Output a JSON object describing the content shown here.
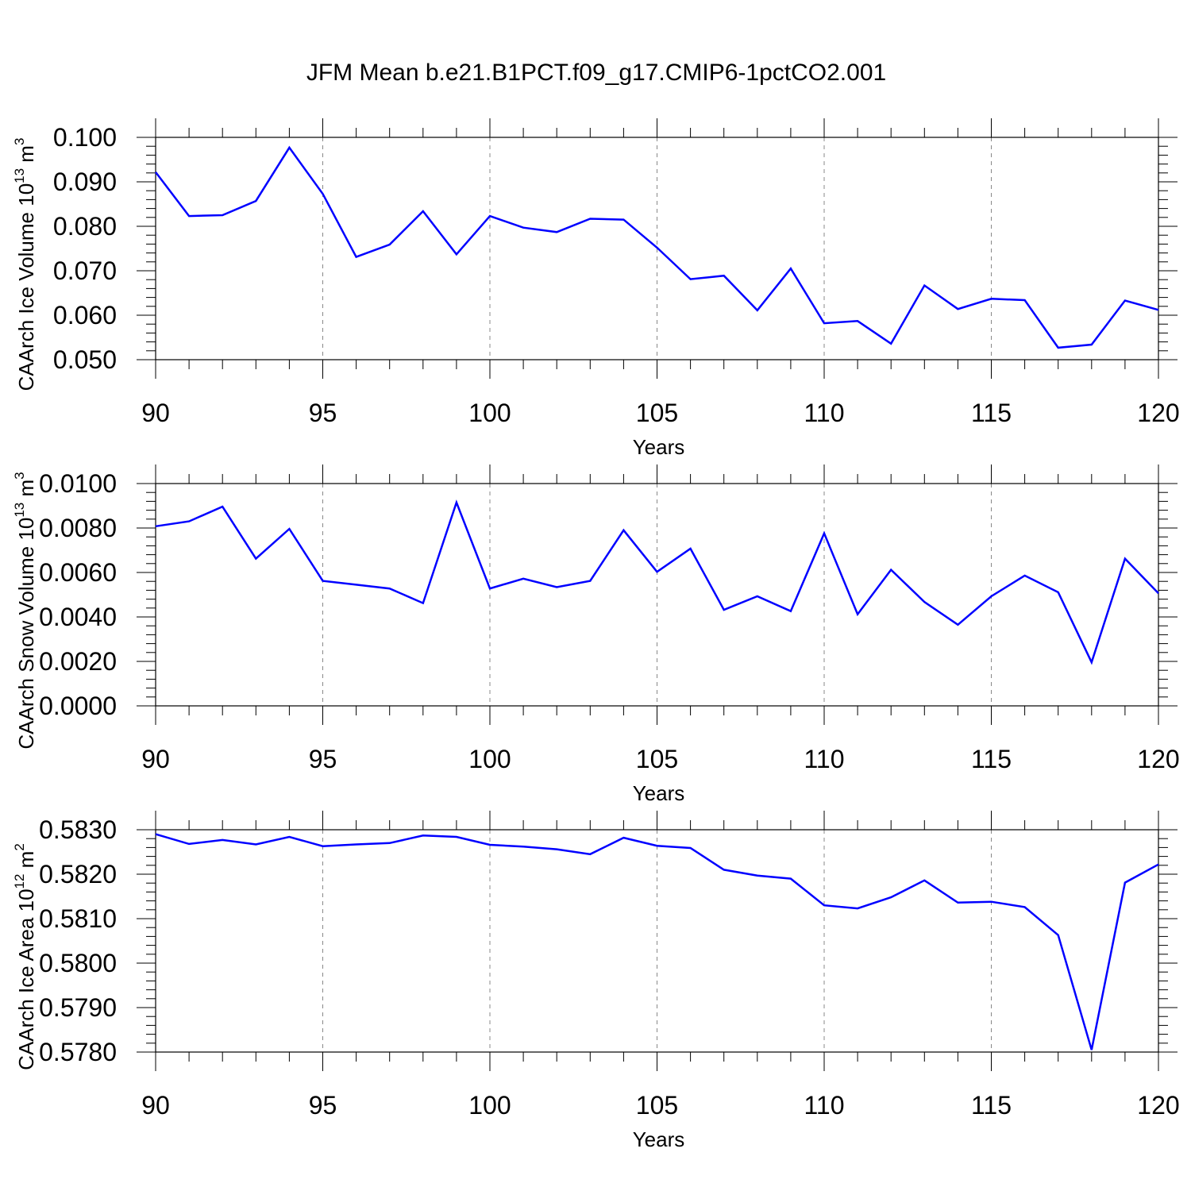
{
  "title": "JFM Mean b.e21.B1PCT.f09_g17.CMIP6-1pctCO2.001",
  "colors": {
    "series": "#0000ff",
    "grid": "#888888",
    "axes": "#000000"
  },
  "chart_data": [
    {
      "type": "line",
      "xlabel": "Years",
      "ylabel": {
        "text": "CAArch Ice Volume 10",
        "sup1": "13",
        "mid": " m",
        "sup2": "3"
      },
      "xlim": [
        90,
        120
      ],
      "ylim": [
        0.05,
        0.1
      ],
      "xticks": [
        "90",
        "95",
        "100",
        "105",
        "110",
        "115",
        "120"
      ],
      "yticks": [
        "0.050",
        "0.060",
        "0.070",
        "0.080",
        "0.090",
        "0.100"
      ],
      "grid": "vertical dashed at major x ticks",
      "x": [
        90,
        91,
        92,
        93,
        94,
        95,
        96,
        97,
        98,
        99,
        100,
        101,
        102,
        103,
        104,
        105,
        106,
        107,
        108,
        109,
        110,
        111,
        112,
        113,
        114,
        115,
        116,
        117,
        118,
        119,
        120
      ],
      "values": [
        0.0922,
        0.0823,
        0.0825,
        0.0857,
        0.0977,
        0.0873,
        0.0731,
        0.0759,
        0.0834,
        0.0737,
        0.0823,
        0.0797,
        0.0787,
        0.0817,
        0.0815,
        0.0752,
        0.0681,
        0.0689,
        0.0611,
        0.0705,
        0.0582,
        0.0587,
        0.0536,
        0.0667,
        0.0614,
        0.0637,
        0.0634,
        0.0527,
        0.0534,
        0.0633,
        0.0612
      ]
    },
    {
      "type": "line",
      "xlabel": "Years",
      "ylabel": {
        "text": "CAArch Snow Volume 10",
        "sup1": "13",
        "mid": " m",
        "sup2": "3"
      },
      "xlim": [
        90,
        120
      ],
      "ylim": [
        0,
        0.01
      ],
      "xticks": [
        "90",
        "95",
        "100",
        "105",
        "110",
        "115",
        "120"
      ],
      "yticks": [
        "0.0000",
        "0.0020",
        "0.0040",
        "0.0060",
        "0.0080",
        "0.0100"
      ],
      "grid": "vertical dashed at major x ticks",
      "x": [
        90,
        91,
        92,
        93,
        94,
        95,
        96,
        97,
        98,
        99,
        100,
        101,
        102,
        103,
        104,
        105,
        106,
        107,
        108,
        109,
        110,
        111,
        112,
        113,
        114,
        115,
        116,
        117,
        118,
        119,
        120
      ],
      "values": [
        0.00808,
        0.0083,
        0.00896,
        0.00662,
        0.00796,
        0.00562,
        0.00545,
        0.00528,
        0.00462,
        0.00915,
        0.00528,
        0.00572,
        0.00534,
        0.00562,
        0.0079,
        0.00603,
        0.00707,
        0.00432,
        0.00493,
        0.00426,
        0.00776,
        0.00412,
        0.00612,
        0.00467,
        0.00365,
        0.00493,
        0.00586,
        0.00511,
        0.00196,
        0.00662,
        0.00506
      ]
    },
    {
      "type": "line",
      "xlabel": "Years",
      "ylabel": {
        "text": "CAArch Ice Area 10",
        "sup1": "12",
        "mid": " m",
        "sup2": "2"
      },
      "xlim": [
        90,
        120
      ],
      "ylim": [
        0.578,
        0.583
      ],
      "xticks": [
        "90",
        "95",
        "100",
        "105",
        "110",
        "115",
        "120"
      ],
      "yticks": [
        "0.5780",
        "0.5790",
        "0.5800",
        "0.5810",
        "0.5820",
        "0.5830"
      ],
      "grid": "vertical dashed at major x ticks",
      "x": [
        90,
        91,
        92,
        93,
        94,
        95,
        96,
        97,
        98,
        99,
        100,
        101,
        102,
        103,
        104,
        105,
        106,
        107,
        108,
        109,
        110,
        111,
        112,
        113,
        114,
        115,
        116,
        117,
        118,
        119,
        120
      ],
      "values": [
        0.5829,
        0.58268,
        0.58277,
        0.58267,
        0.58284,
        0.58263,
        0.58267,
        0.5827,
        0.58287,
        0.58284,
        0.58266,
        0.58262,
        0.58256,
        0.58245,
        0.58282,
        0.58264,
        0.58259,
        0.5821,
        0.58197,
        0.5819,
        0.5813,
        0.58123,
        0.58148,
        0.58186,
        0.58136,
        0.58138,
        0.58126,
        0.58063,
        0.57805,
        0.58181,
        0.58222
      ]
    }
  ]
}
